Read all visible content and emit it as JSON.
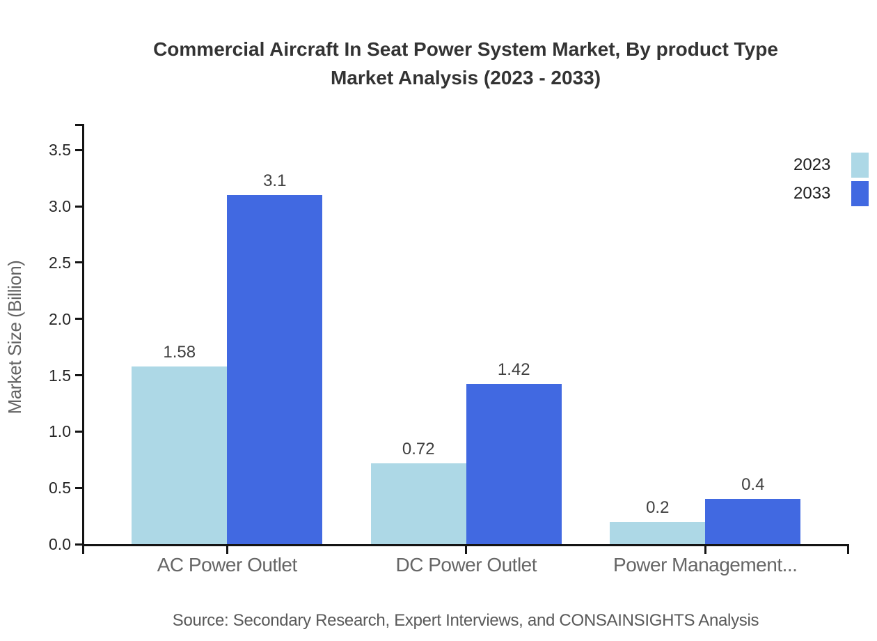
{
  "title": {
    "line1": "Commercial Aircraft In Seat Power System Market, By product Type",
    "line2": "Market Analysis (2023 - 2033)"
  },
  "y_axis_label": "Market Size (Billion)",
  "source": "Source: Secondary Research, Expert Interviews, and CONSAINSIGHTS Analysis",
  "legend": {
    "items": [
      {
        "label": "2023",
        "color": "#ADD8E6"
      },
      {
        "label": "2033",
        "color": "#4169E1"
      }
    ]
  },
  "chart_data": {
    "type": "bar",
    "title": "Commercial Aircraft In Seat Power System Market, By product Type Market Analysis (2023 - 2033)",
    "categories": [
      "AC Power Outlet",
      "DC Power Outlet",
      "Power Management..."
    ],
    "series": [
      {
        "name": "2023",
        "color": "#ADD8E6",
        "values": [
          1.58,
          0.72,
          0.2
        ]
      },
      {
        "name": "2033",
        "color": "#4169E1",
        "values": [
          3.1,
          1.42,
          0.4
        ]
      }
    ],
    "ylabel": "Market Size (Billion)",
    "yticks": [
      0,
      0.5,
      1,
      1.5,
      2,
      2.5,
      3,
      3.5
    ],
    "ylim": [
      0,
      3.73
    ],
    "grid": false,
    "legend_position": "top-right",
    "bar_value_labels": true
  }
}
